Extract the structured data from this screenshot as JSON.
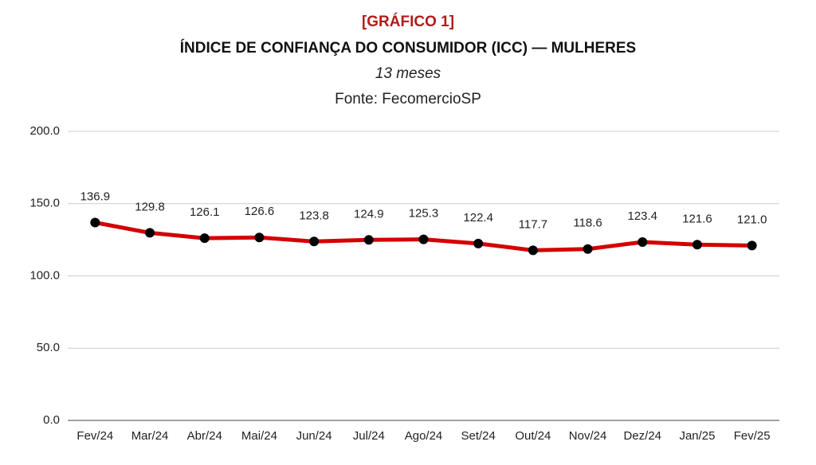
{
  "chart_data": {
    "type": "line",
    "label": "[GRÁFICO 1]",
    "title": "ÍNDICE DE CONFIANÇA DO CONSUMIDOR (ICC) — MULHERES",
    "subtitle": "13 meses",
    "source": "Fonte: FecomercioSP",
    "categories": [
      "Fev/24",
      "Mar/24",
      "Abr/24",
      "Mai/24",
      "Jun/24",
      "Jul/24",
      "Ago/24",
      "Set/24",
      "Out/24",
      "Nov/24",
      "Dez/24",
      "Jan/25",
      "Fev/25"
    ],
    "values": [
      136.9,
      129.8,
      126.1,
      126.6,
      123.8,
      124.9,
      125.3,
      122.4,
      117.7,
      118.6,
      123.4,
      121.6,
      121
    ],
    "value_labels": [
      "136.9",
      "129.8",
      "126.1",
      "126.6",
      "123.8",
      "124.9",
      "125.3",
      "122.4",
      "117.7",
      "118.6",
      "123.4",
      "121.6",
      "121.0"
    ],
    "color": "#d40000",
    "marker_color": "#000000",
    "ylim": [
      0,
      200
    ],
    "yticks": [
      {
        "value": 0,
        "label": "0.0"
      },
      {
        "value": 50,
        "label": "50.0"
      },
      {
        "value": 100,
        "label": "100.0"
      },
      {
        "value": 150,
        "label": "150.0"
      },
      {
        "value": 200,
        "label": "200.0"
      }
    ],
    "grid": true
  }
}
